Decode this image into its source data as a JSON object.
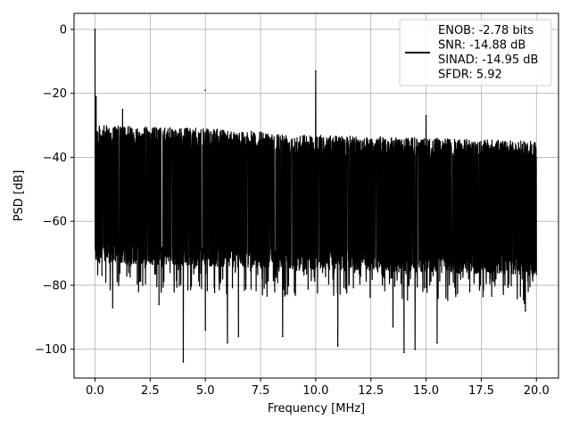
{
  "chart_data": {
    "type": "line",
    "title": "",
    "xlabel": "Frequency [MHz]",
    "ylabel": "PSD [dB]",
    "xlim": [
      -0.95,
      21.0
    ],
    "ylim": [
      -109,
      5
    ],
    "xticks": [
      0.0,
      2.5,
      5.0,
      7.5,
      10.0,
      12.5,
      15.0,
      17.5,
      20.0
    ],
    "xtick_labels": [
      "0.0",
      "2.5",
      "5.0",
      "7.5",
      "10.0",
      "12.5",
      "15.0",
      "17.5",
      "20.0"
    ],
    "yticks": [
      0,
      -20,
      -40,
      -60,
      -80,
      -100
    ],
    "ytick_labels": [
      "0",
      "−20",
      "−40",
      "−60",
      "−80",
      "−100"
    ],
    "grid": true,
    "legend_position": "top-right",
    "legend_entries": [
      "ENOB: -2.78 bits",
      "SNR: -14.88 dB",
      "SINAD: -14.95 dB",
      "SFDR: 5.92"
    ],
    "series": [
      {
        "color": "#000000",
        "noise_floor": {
          "x": [
            0.0,
            5.0,
            10.0,
            15.0,
            20.0
          ],
          "upper": [
            -30,
            -31,
            -33,
            -34,
            -35
          ],
          "lower": [
            -70,
            -71,
            -72,
            -73,
            -74
          ]
        },
        "peaks": [
          {
            "x": 0.0,
            "y": 0
          },
          {
            "x": 0.05,
            "y": -21
          },
          {
            "x": 1.25,
            "y": -25
          },
          {
            "x": 5.0,
            "y": -19
          },
          {
            "x": 10.0,
            "y": -13
          },
          {
            "x": 15.0,
            "y": -27
          }
        ],
        "dips": [
          {
            "x": 0.8,
            "y": -87
          },
          {
            "x": 2.9,
            "y": -86
          },
          {
            "x": 4.0,
            "y": -104
          },
          {
            "x": 5.0,
            "y": -94
          },
          {
            "x": 6.0,
            "y": -98
          },
          {
            "x": 6.5,
            "y": -96
          },
          {
            "x": 8.5,
            "y": -96
          },
          {
            "x": 11.0,
            "y": -99
          },
          {
            "x": 13.5,
            "y": -93
          },
          {
            "x": 14.0,
            "y": -101
          },
          {
            "x": 14.5,
            "y": -100
          },
          {
            "x": 15.5,
            "y": -98
          },
          {
            "x": 19.5,
            "y": -88
          }
        ]
      }
    ]
  }
}
